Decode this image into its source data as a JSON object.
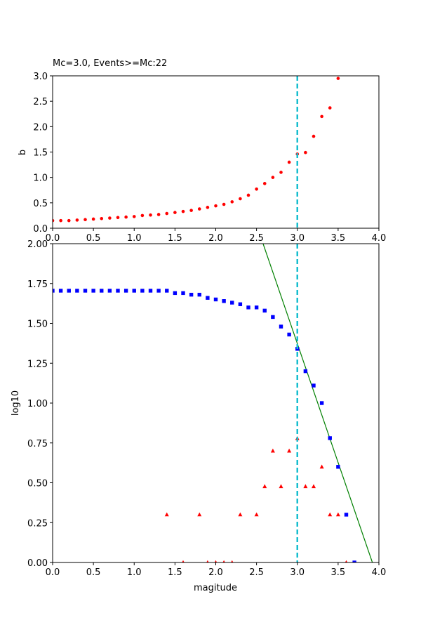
{
  "chart_data": [
    {
      "type": "scatter",
      "title": "Mc=3.0, Events>=Mc:22",
      "xlabel": "",
      "ylabel": "b",
      "xlim": [
        0,
        4.0
      ],
      "ylim": [
        0,
        3.0
      ],
      "xticks": [
        "0.0",
        "0.5",
        "1.0",
        "1.5",
        "2.0",
        "2.5",
        "3.0",
        "3.5",
        "4.0"
      ],
      "yticks": [
        "0.0",
        "0.5",
        "1.0",
        "1.5",
        "2.0",
        "2.5",
        "3.0"
      ],
      "marker_color": "#ff0000",
      "vline": {
        "x": 3.0,
        "color": "#17becf",
        "style": "dashed"
      },
      "series": [
        {
          "x": [
            0.0,
            0.1,
            0.2,
            0.3,
            0.4,
            0.5,
            0.6,
            0.7,
            0.8,
            0.9,
            1.0,
            1.1,
            1.2,
            1.3,
            1.4,
            1.5,
            1.6,
            1.7,
            1.8,
            1.9,
            2.0,
            2.1,
            2.2,
            2.3,
            2.4,
            2.5,
            2.6,
            2.7,
            2.8,
            2.9,
            3.0,
            3.1,
            3.2,
            3.3,
            3.4,
            3.5
          ],
          "y": [
            0.15,
            0.15,
            0.15,
            0.16,
            0.17,
            0.18,
            0.19,
            0.2,
            0.21,
            0.22,
            0.23,
            0.25,
            0.26,
            0.27,
            0.29,
            0.31,
            0.33,
            0.35,
            0.38,
            0.41,
            0.44,
            0.47,
            0.52,
            0.58,
            0.65,
            0.77,
            0.88,
            1.0,
            1.1,
            1.3,
            1.46,
            1.49,
            1.81,
            2.2,
            2.37,
            2.95
          ]
        }
      ]
    },
    {
      "type": "scatter",
      "title": "",
      "xlabel": "magitude",
      "ylabel": "log10",
      "xlim": [
        0,
        4.0
      ],
      "ylim": [
        0,
        2.0
      ],
      "xticks": [
        "0.0",
        "0.5",
        "1.0",
        "1.5",
        "2.0",
        "2.5",
        "3.0",
        "3.5",
        "4.0"
      ],
      "yticks": [
        "0.00",
        "0.25",
        "0.50",
        "0.75",
        "1.00",
        "1.25",
        "1.50",
        "1.75",
        "2.00"
      ],
      "vline": {
        "x": 3.0,
        "color": "#17becf",
        "style": "dashed"
      },
      "fit_line": {
        "x": [
          2.58,
          3.92
        ],
        "y": [
          2.0,
          0.0
        ],
        "color": "#008000"
      },
      "series": [
        {
          "marker": "square",
          "color": "#0000ff",
          "x": [
            0.0,
            0.1,
            0.2,
            0.3,
            0.4,
            0.5,
            0.6,
            0.7,
            0.8,
            0.9,
            1.0,
            1.1,
            1.2,
            1.3,
            1.4,
            1.5,
            1.6,
            1.7,
            1.8,
            1.9,
            2.0,
            2.1,
            2.2,
            2.3,
            2.4,
            2.5,
            2.6,
            2.7,
            2.8,
            2.9,
            3.0,
            3.1,
            3.2,
            3.3,
            3.4,
            3.5,
            3.6,
            3.7
          ],
          "y": [
            1.705,
            1.705,
            1.705,
            1.705,
            1.705,
            1.705,
            1.705,
            1.705,
            1.705,
            1.705,
            1.705,
            1.705,
            1.705,
            1.705,
            1.705,
            1.69,
            1.69,
            1.68,
            1.68,
            1.66,
            1.65,
            1.64,
            1.63,
            1.62,
            1.6,
            1.6,
            1.58,
            1.54,
            1.48,
            1.43,
            1.34,
            1.2,
            1.11,
            1.0,
            0.78,
            0.6,
            0.3,
            0.0
          ]
        },
        {
          "marker": "triangle",
          "color": "#ff0000",
          "x": [
            1.4,
            1.6,
            1.8,
            1.9,
            2.0,
            2.1,
            2.2,
            2.3,
            2.5,
            2.6,
            2.7,
            2.8,
            2.9,
            3.0,
            3.1,
            3.2,
            3.3,
            3.4,
            3.5,
            3.6
          ],
          "y": [
            0.3,
            0.0,
            0.3,
            0.0,
            0.0,
            0.0,
            0.0,
            0.3,
            0.3,
            0.477,
            0.7,
            0.477,
            0.7,
            0.778,
            0.477,
            0.477,
            0.6,
            0.3,
            0.3,
            0.0
          ]
        }
      ]
    }
  ]
}
